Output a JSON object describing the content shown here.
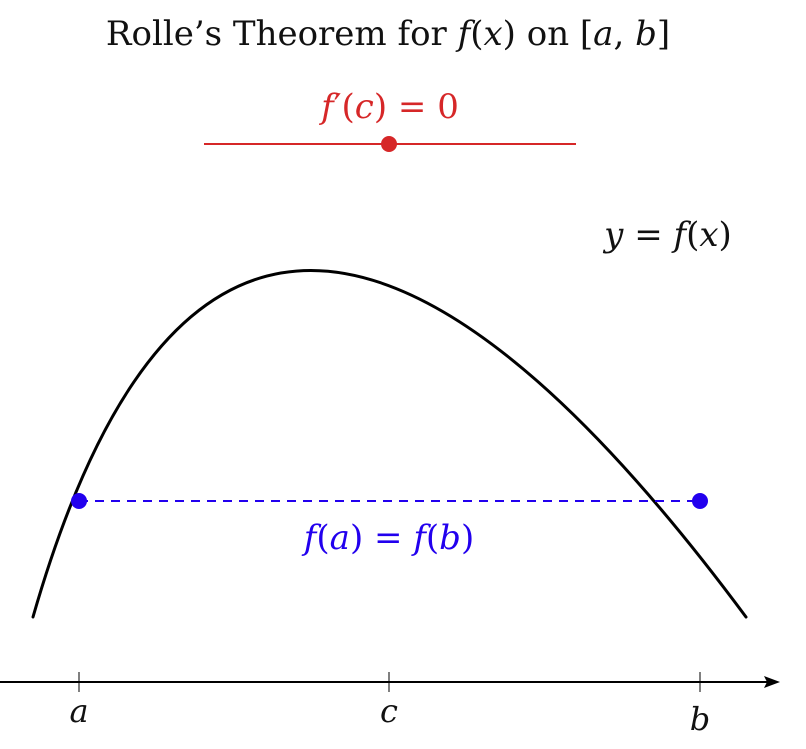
{
  "title": {
    "prefix": "Rolle’s Theorem for ",
    "func": "f",
    "open_paren": "(",
    "var": "x",
    "close_paren": ")",
    "middle": " on ",
    "interval_open": "[",
    "a": "a",
    "comma": ", ",
    "b": "b",
    "interval_close": "]"
  },
  "curve_label": {
    "y": "y",
    "eq": " = ",
    "f": "f",
    "open_paren": "(",
    "x": "x",
    "close_paren": ")"
  },
  "tangent_label": {
    "f": "f",
    "prime": "′",
    "open_paren": "(",
    "c": "c",
    "close_paren": ")",
    "eq": " = ",
    "zero": "0"
  },
  "equal_label": {
    "f1": "f",
    "open1": "(",
    "a": "a",
    "close1": ")",
    "eq": " = ",
    "f2": "f",
    "open2": "(",
    "b": "b",
    "close2": ")"
  },
  "ticks": {
    "a": "a",
    "c": "c",
    "b": "b"
  },
  "colors": {
    "curve": "#000000",
    "tangent": "#d62728",
    "equal_level": "#2200ee",
    "axis": "#000000"
  }
}
